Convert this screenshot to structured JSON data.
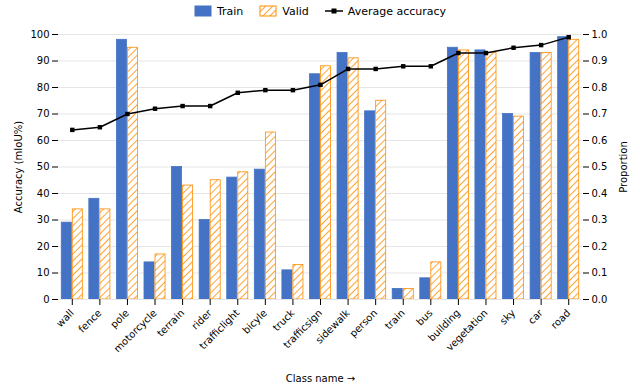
{
  "chart_data": {
    "type": "bar",
    "xlabel": "Class name",
    "ylabel": "Accuracy (mIoU%)",
    "y2label": "Proportion",
    "categories": [
      "wall",
      "fence",
      "pole",
      "motorcycle",
      "terrain",
      "rider",
      "trafficlight",
      "bicyle",
      "truck",
      "trafficsign",
      "sidewalk",
      "person",
      "train",
      "bus",
      "building",
      "vegetation",
      "sky",
      "car",
      "road"
    ],
    "series": [
      {
        "name": "Train",
        "color": "#4472C4",
        "values": [
          29,
          38,
          98,
          14,
          50,
          30,
          46,
          49,
          11,
          85,
          93,
          71,
          4,
          8,
          95,
          94,
          70,
          93,
          99
        ]
      },
      {
        "name": "Valid",
        "color": "#FF8C00",
        "values": [
          34,
          34,
          95,
          17,
          43,
          45,
          48,
          63,
          13,
          88,
          91,
          75,
          4,
          14,
          94,
          93,
          69,
          93,
          98
        ]
      },
      {
        "name": "Average accuracy",
        "type": "line",
        "axis": "y2",
        "color": "#000000",
        "marker": "square",
        "values": [
          0.64,
          0.65,
          0.7,
          0.72,
          0.73,
          0.73,
          0.78,
          0.79,
          0.79,
          0.81,
          0.87,
          0.87,
          0.88,
          0.88,
          0.93,
          0.93,
          0.95,
          0.96,
          0.99
        ]
      }
    ],
    "ylim": [
      0,
      100
    ],
    "yticks": [
      0,
      10,
      20,
      30,
      40,
      50,
      60,
      70,
      80,
      90,
      100
    ],
    "y2lim": [
      0,
      1
    ],
    "y2ticks": [
      {
        "value": 0,
        "label": "0.0"
      },
      0.1,
      0.2,
      0.3,
      0.4,
      0.5,
      0.6,
      0.7,
      0.8,
      0.9,
      {
        "value": 1,
        "label": "1.0"
      }
    ],
    "grid": true,
    "legend": "top"
  }
}
